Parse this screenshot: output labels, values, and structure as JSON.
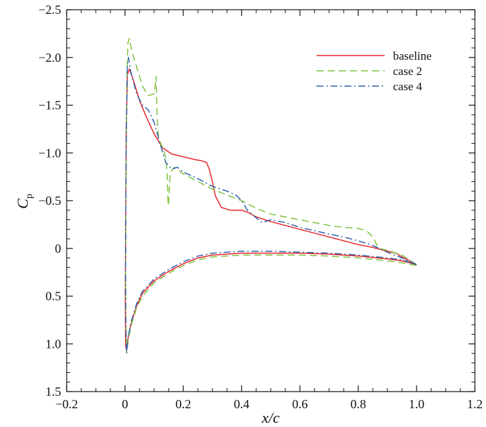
{
  "chart_data": {
    "type": "line",
    "title": "",
    "xlabel": "x/c",
    "ylabel": {
      "main": "C",
      "sub": "p"
    },
    "xlim": [
      -0.2,
      1.2
    ],
    "ylim": [
      -2.5,
      1.5
    ],
    "y_inverted": true,
    "grid": false,
    "legend_position": "top-right",
    "x_ticks": [
      -0.2,
      0,
      0.2,
      0.4,
      0.6,
      0.8,
      1.0,
      1.2
    ],
    "x_tick_labels": [
      "−0.2",
      "0",
      "0.2",
      "0.4",
      "0.6",
      "0.8",
      "1.0",
      "1.2"
    ],
    "y_ticks": [
      -2.5,
      -2.0,
      -1.5,
      -1.0,
      -0.5,
      0,
      0.5,
      1.0,
      1.5
    ],
    "y_tick_labels": [
      "−2.5",
      "−2.0",
      "−1.5",
      "−1.0",
      "−0.5",
      "0",
      "0.5",
      "1.0",
      "1.5"
    ],
    "series": [
      {
        "name": "baseline",
        "color": "#e8262b",
        "dash": "solid",
        "upper": [
          [
            1.0,
            0.17
          ],
          [
            0.95,
            0.09
          ],
          [
            0.93,
            0.05
          ],
          [
            0.9,
            0.03
          ],
          [
            0.85,
            -0.01
          ],
          [
            0.8,
            -0.04
          ],
          [
            0.7,
            -0.12
          ],
          [
            0.6,
            -0.2
          ],
          [
            0.5,
            -0.28
          ],
          [
            0.45,
            -0.33
          ],
          [
            0.42,
            -0.38
          ],
          [
            0.4,
            -0.4
          ],
          [
            0.36,
            -0.4
          ],
          [
            0.33,
            -0.43
          ],
          [
            0.31,
            -0.55
          ],
          [
            0.3,
            -0.7
          ],
          [
            0.29,
            -0.82
          ],
          [
            0.28,
            -0.9
          ],
          [
            0.26,
            -0.92
          ],
          [
            0.24,
            -0.93
          ],
          [
            0.2,
            -0.96
          ],
          [
            0.16,
            -0.99
          ],
          [
            0.13,
            -1.05
          ],
          [
            0.1,
            -1.2
          ],
          [
            0.07,
            -1.4
          ],
          [
            0.05,
            -1.55
          ],
          [
            0.03,
            -1.75
          ],
          [
            0.015,
            -1.88
          ],
          [
            0.008,
            -1.82
          ],
          [
            0.004,
            -1.2
          ],
          [
            0.002,
            0.0
          ],
          [
            0.001,
            0.5
          ],
          [
            0.002,
            1.0
          ],
          [
            0.005,
            1.07
          ]
        ],
        "lower": [
          [
            0.005,
            1.07
          ],
          [
            0.01,
            0.95
          ],
          [
            0.02,
            0.8
          ],
          [
            0.04,
            0.6
          ],
          [
            0.06,
            0.47
          ],
          [
            0.1,
            0.34
          ],
          [
            0.15,
            0.24
          ],
          [
            0.2,
            0.16
          ],
          [
            0.25,
            0.1
          ],
          [
            0.3,
            0.07
          ],
          [
            0.4,
            0.05
          ],
          [
            0.5,
            0.05
          ],
          [
            0.6,
            0.05
          ],
          [
            0.7,
            0.06
          ],
          [
            0.8,
            0.08
          ],
          [
            0.9,
            0.11
          ],
          [
            0.95,
            0.13
          ],
          [
            1.0,
            0.17
          ]
        ]
      },
      {
        "name": "case 2",
        "color": "#7dc13c",
        "dash": "dashed",
        "upper": [
          [
            1.0,
            0.17
          ],
          [
            0.95,
            0.07
          ],
          [
            0.9,
            0.02
          ],
          [
            0.87,
            0.0
          ],
          [
            0.85,
            -0.12
          ],
          [
            0.83,
            -0.18
          ],
          [
            0.8,
            -0.21
          ],
          [
            0.75,
            -0.22
          ],
          [
            0.7,
            -0.24
          ],
          [
            0.65,
            -0.27
          ],
          [
            0.6,
            -0.3
          ],
          [
            0.55,
            -0.33
          ],
          [
            0.5,
            -0.36
          ],
          [
            0.45,
            -0.42
          ],
          [
            0.4,
            -0.5
          ],
          [
            0.35,
            -0.56
          ],
          [
            0.3,
            -0.62
          ],
          [
            0.25,
            -0.7
          ],
          [
            0.2,
            -0.78
          ],
          [
            0.17,
            -0.85
          ],
          [
            0.155,
            -0.8
          ],
          [
            0.15,
            -0.5
          ],
          [
            0.148,
            -0.45
          ],
          [
            0.145,
            -0.75
          ],
          [
            0.14,
            -0.95
          ],
          [
            0.13,
            -1.05
          ],
          [
            0.115,
            -1.15
          ],
          [
            0.11,
            -1.4
          ],
          [
            0.107,
            -1.8
          ],
          [
            0.104,
            -1.72
          ],
          [
            0.1,
            -1.62
          ],
          [
            0.08,
            -1.6
          ],
          [
            0.06,
            -1.7
          ],
          [
            0.04,
            -1.9
          ],
          [
            0.025,
            -2.05
          ],
          [
            0.015,
            -2.2
          ],
          [
            0.01,
            -2.15
          ],
          [
            0.006,
            -1.7
          ],
          [
            0.003,
            -0.5
          ],
          [
            0.002,
            0.3
          ],
          [
            0.003,
            0.9
          ],
          [
            0.006,
            1.1
          ]
        ],
        "lower": [
          [
            0.006,
            1.1
          ],
          [
            0.01,
            0.98
          ],
          [
            0.02,
            0.82
          ],
          [
            0.04,
            0.62
          ],
          [
            0.06,
            0.5
          ],
          [
            0.1,
            0.36
          ],
          [
            0.15,
            0.26
          ],
          [
            0.2,
            0.18
          ],
          [
            0.25,
            0.12
          ],
          [
            0.3,
            0.09
          ],
          [
            0.4,
            0.07
          ],
          [
            0.5,
            0.07
          ],
          [
            0.6,
            0.07
          ],
          [
            0.7,
            0.08
          ],
          [
            0.8,
            0.1
          ],
          [
            0.9,
            0.13
          ],
          [
            0.95,
            0.15
          ],
          [
            1.0,
            0.18
          ]
        ]
      },
      {
        "name": "case 4",
        "color": "#2f62ad",
        "dash": "dashdot",
        "upper": [
          [
            1.0,
            0.17
          ],
          [
            0.95,
            0.1
          ],
          [
            0.9,
            0.04
          ],
          [
            0.85,
            -0.03
          ],
          [
            0.8,
            -0.08
          ],
          [
            0.75,
            -0.12
          ],
          [
            0.7,
            -0.15
          ],
          [
            0.6,
            -0.22
          ],
          [
            0.55,
            -0.27
          ],
          [
            0.5,
            -0.3
          ],
          [
            0.47,
            -0.27
          ],
          [
            0.45,
            -0.32
          ],
          [
            0.42,
            -0.4
          ],
          [
            0.4,
            -0.5
          ],
          [
            0.38,
            -0.56
          ],
          [
            0.35,
            -0.6
          ],
          [
            0.3,
            -0.65
          ],
          [
            0.25,
            -0.73
          ],
          [
            0.2,
            -0.8
          ],
          [
            0.18,
            -0.85
          ],
          [
            0.16,
            -0.83
          ],
          [
            0.14,
            -0.9
          ],
          [
            0.12,
            -1.1
          ],
          [
            0.1,
            -1.32
          ],
          [
            0.08,
            -1.45
          ],
          [
            0.06,
            -1.5
          ],
          [
            0.04,
            -1.62
          ],
          [
            0.02,
            -1.85
          ],
          [
            0.012,
            -2.0
          ],
          [
            0.008,
            -1.92
          ],
          [
            0.004,
            -1.0
          ],
          [
            0.002,
            0.2
          ],
          [
            0.003,
            0.8
          ],
          [
            0.006,
            1.1
          ]
        ],
        "lower": [
          [
            0.006,
            1.1
          ],
          [
            0.01,
            0.95
          ],
          [
            0.02,
            0.78
          ],
          [
            0.04,
            0.58
          ],
          [
            0.06,
            0.45
          ],
          [
            0.1,
            0.32
          ],
          [
            0.15,
            0.22
          ],
          [
            0.2,
            0.14
          ],
          [
            0.25,
            0.08
          ],
          [
            0.3,
            0.05
          ],
          [
            0.4,
            0.03
          ],
          [
            0.5,
            0.03
          ],
          [
            0.6,
            0.04
          ],
          [
            0.7,
            0.05
          ],
          [
            0.8,
            0.07
          ],
          [
            0.9,
            0.1
          ],
          [
            0.95,
            0.12
          ],
          [
            1.0,
            0.17
          ]
        ]
      }
    ]
  }
}
